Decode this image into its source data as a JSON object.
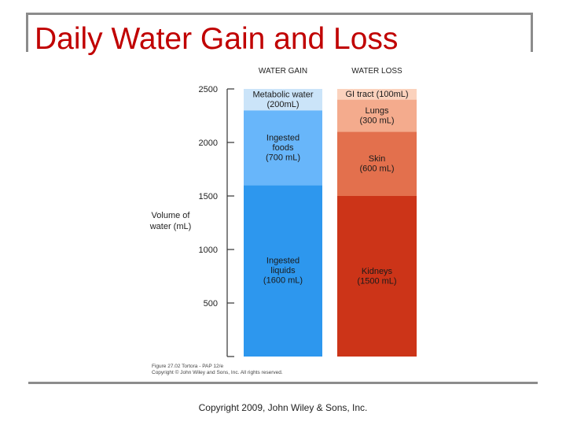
{
  "slide": {
    "title": "Daily Water Gain and Loss",
    "footer": "Copyright 2009, John Wiley & Sons, Inc."
  },
  "figure_credit": [
    "Figure 27.02  Tortora - PAP 12/e",
    "Copyright © John Wiley and Sons, Inc. All rights reserved."
  ],
  "chart_data": {
    "type": "bar",
    "stacked": true,
    "categories": [
      "WATER GAIN",
      "WATER LOSS"
    ],
    "ylabel": [
      "Volume of",
      "water (mL)"
    ],
    "ylim": [
      0,
      2500
    ],
    "yticks": [
      500,
      1000,
      1500,
      2000,
      2500
    ],
    "grid": false,
    "stacks": [
      {
        "category": "WATER GAIN",
        "segments": [
          {
            "name": "Ingested liquids",
            "value": 1600,
            "label": [
              "Ingested",
              "liquids",
              "(1600 mL)"
            ],
            "color": "#2d97ee"
          },
          {
            "name": "Ingested foods",
            "value": 700,
            "label": [
              "Ingested",
              "foods",
              "(700 mL)"
            ],
            "color": "#68b6fa"
          },
          {
            "name": "Metabolic water",
            "value": 200,
            "label": [
              "Metabolic water",
              "(200mL)"
            ],
            "color": "#cbe4f9"
          }
        ]
      },
      {
        "category": "WATER LOSS",
        "segments": [
          {
            "name": "Kidneys",
            "value": 1500,
            "label": [
              "Kidneys",
              "(1500 mL)"
            ],
            "color": "#cc3418"
          },
          {
            "name": "Skin",
            "value": 600,
            "label": [
              "Skin",
              "(600 mL)"
            ],
            "color": "#e3704d"
          },
          {
            "name": "Lungs",
            "value": 300,
            "label": [
              "Lungs",
              "(300 mL)"
            ],
            "color": "#f4ab8d"
          },
          {
            "name": "GI tract",
            "value": 100,
            "label": [
              "GI tract (100mL)"
            ],
            "color": "#fbd2bd"
          }
        ]
      }
    ]
  }
}
